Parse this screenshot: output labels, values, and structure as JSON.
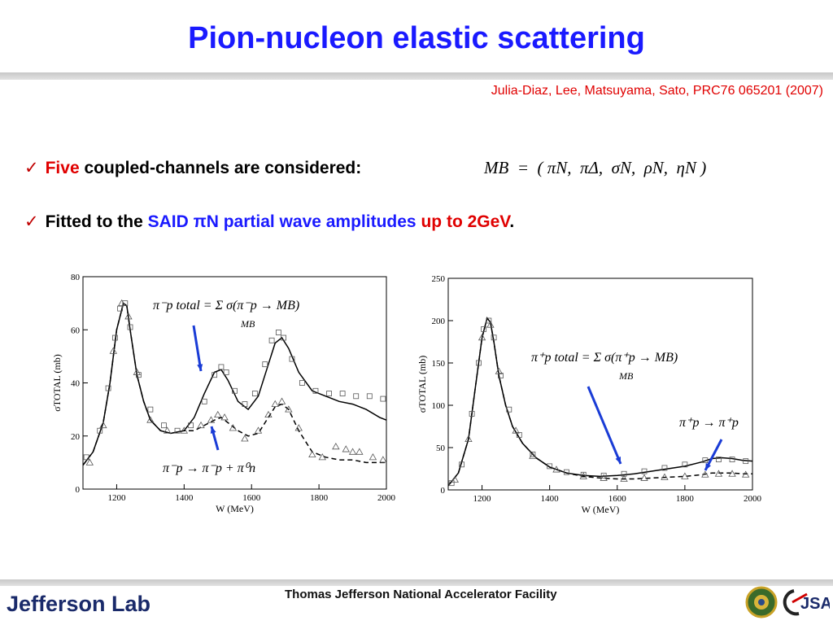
{
  "slide": {
    "title": "Pion-nucleon elastic scattering",
    "citation": "Julia-Diaz, Lee, Matsuyama, Sato, PRC76 065201 (2007)",
    "bullet1": {
      "check": "✓",
      "red": "Five",
      "rest": "coupled-channels are considered:"
    },
    "mb_equation": "MB  =  ( πN,  πΔ,  σN,  ρN,  ηN )",
    "bullet2": {
      "check": "✓",
      "pre": "Fitted to the",
      "blue": "SAID πN partial wave amplitudes",
      "red": "up to 2GeV",
      "post": "."
    },
    "footer_center": "Thomas Jefferson National Accelerator Facility",
    "footer_logo": "Jefferson Lab",
    "footer_logo2": "JSA"
  },
  "colors": {
    "title": "#1a1aff",
    "red": "#e00000",
    "arrow": "#1a3cd6"
  },
  "chart_data": [
    {
      "type": "line",
      "ylabel": "σTOTAL (mb)",
      "xlabel": "W (MeV)",
      "xlim": [
        1100,
        2000
      ],
      "ylim": [
        0,
        80
      ],
      "xticks": [
        "1200",
        "1400",
        "1600",
        "1800",
        "2000"
      ],
      "yticks": [
        "0",
        "20",
        "40",
        "60",
        "80"
      ],
      "annotations": {
        "total": "π⁻p total = Σ σ(π⁻p → MB)",
        "total_sum": "MB",
        "elastic": "π⁻p → π⁻p + π⁰n"
      },
      "series": [
        {
          "style": "solid",
          "x": [
            1100,
            1130,
            1160,
            1180,
            1200,
            1220,
            1230,
            1240,
            1260,
            1280,
            1300,
            1330,
            1360,
            1400,
            1430,
            1460,
            1490,
            1510,
            1530,
            1560,
            1590,
            1620,
            1650,
            1670,
            1690,
            1710,
            1740,
            1780,
            1820,
            1860,
            1900,
            1940,
            1980,
            2000
          ],
          "y": [
            9,
            14,
            25,
            40,
            60,
            70,
            69,
            60,
            43,
            33,
            26,
            22,
            21,
            22,
            27,
            36,
            44,
            45,
            41,
            33,
            30,
            35,
            47,
            55,
            57,
            53,
            44,
            37,
            35,
            33,
            32,
            30,
            27,
            26
          ]
        },
        {
          "style": "dashed",
          "x": [
            1100,
            1130,
            1160,
            1180,
            1200,
            1220,
            1230,
            1240,
            1260,
            1280,
            1300,
            1330,
            1360,
            1400,
            1430,
            1460,
            1490,
            1510,
            1530,
            1560,
            1590,
            1620,
            1650,
            1670,
            1690,
            1710,
            1740,
            1780,
            1820,
            1860,
            1900,
            1940,
            1980,
            2000
          ],
          "y": [
            9,
            14,
            25,
            40,
            60,
            70,
            69,
            60,
            43,
            33,
            26,
            22,
            21,
            22,
            22,
            24,
            26,
            27,
            25,
            22,
            20,
            21,
            27,
            31,
            32,
            30,
            22,
            14,
            12,
            11,
            11,
            10,
            10,
            10
          ]
        },
        {
          "style": "squares",
          "x": [
            1110,
            1150,
            1175,
            1195,
            1210,
            1225,
            1240,
            1265,
            1300,
            1340,
            1380,
            1420,
            1460,
            1490,
            1510,
            1525,
            1550,
            1580,
            1610,
            1640,
            1660,
            1680,
            1695,
            1720,
            1750,
            1790,
            1830,
            1870,
            1910,
            1950,
            1990
          ],
          "y": [
            12,
            22,
            38,
            57,
            68,
            70,
            61,
            43,
            30,
            24,
            22,
            24,
            33,
            43,
            46,
            44,
            37,
            32,
            36,
            47,
            56,
            59,
            57,
            49,
            40,
            37,
            36,
            36,
            35,
            35,
            34
          ]
        },
        {
          "style": "triangles",
          "x": [
            1120,
            1160,
            1190,
            1215,
            1235,
            1260,
            1300,
            1350,
            1400,
            1450,
            1480,
            1500,
            1520,
            1545,
            1580,
            1620,
            1650,
            1670,
            1690,
            1710,
            1740,
            1780,
            1810,
            1850,
            1880,
            1900,
            1920,
            1960,
            1990
          ],
          "y": [
            10,
            24,
            52,
            70,
            65,
            44,
            26,
            22,
            22,
            24,
            26,
            28,
            27,
            23,
            19,
            22,
            28,
            32,
            33,
            30,
            23,
            13,
            12,
            16,
            15,
            14,
            14,
            12,
            11
          ]
        }
      ]
    },
    {
      "type": "line",
      "ylabel": "σTOTAL (mb)",
      "xlabel": "W (MeV)",
      "xlim": [
        1100,
        2000
      ],
      "ylim": [
        0,
        250
      ],
      "xticks": [
        "1200",
        "1400",
        "1600",
        "1800",
        "2000"
      ],
      "yticks": [
        "0",
        "50",
        "100",
        "150",
        "200",
        "250"
      ],
      "annotations": {
        "total": "π⁺p total = Σ σ(π⁺p → MB)",
        "total_sum": "MB",
        "elastic": "π⁺p → π⁺p"
      },
      "series": [
        {
          "style": "solid",
          "x": [
            1100,
            1130,
            1160,
            1180,
            1200,
            1215,
            1225,
            1235,
            1250,
            1270,
            1290,
            1320,
            1360,
            1400,
            1450,
            1500,
            1550,
            1600,
            1650,
            1700,
            1750,
            1800,
            1850,
            1880,
            1910,
            1940,
            1970,
            2000
          ],
          "y": [
            5,
            20,
            60,
            120,
            180,
            203,
            198,
            175,
            135,
            100,
            75,
            55,
            38,
            27,
            20,
            17,
            16,
            17,
            19,
            22,
            25,
            28,
            33,
            37,
            38,
            37,
            35,
            34
          ]
        },
        {
          "style": "dashed",
          "x": [
            1100,
            1130,
            1160,
            1180,
            1200,
            1215,
            1225,
            1235,
            1250,
            1270,
            1290,
            1320,
            1360,
            1400,
            1450,
            1500,
            1550,
            1600,
            1650,
            1700,
            1750,
            1800,
            1850,
            1880,
            1910,
            1940,
            1970,
            2000
          ],
          "y": [
            5,
            20,
            60,
            120,
            180,
            203,
            198,
            175,
            135,
            100,
            75,
            55,
            38,
            27,
            20,
            16,
            14,
            13,
            13,
            14,
            15,
            16,
            18,
            20,
            20,
            20,
            19,
            19
          ]
        },
        {
          "style": "squares",
          "x": [
            1110,
            1140,
            1170,
            1190,
            1205,
            1220,
            1235,
            1255,
            1280,
            1310,
            1350,
            1400,
            1450,
            1500,
            1560,
            1620,
            1680,
            1740,
            1800,
            1860,
            1900,
            1940,
            1980
          ],
          "y": [
            8,
            30,
            90,
            150,
            190,
            200,
            180,
            135,
            95,
            65,
            42,
            28,
            21,
            18,
            17,
            19,
            22,
            26,
            30,
            35,
            36,
            36,
            34
          ]
        },
        {
          "style": "triangles",
          "x": [
            1120,
            1160,
            1200,
            1225,
            1250,
            1300,
            1350,
            1420,
            1500,
            1560,
            1620,
            1680,
            1740,
            1800,
            1860,
            1900,
            1940,
            1980
          ],
          "y": [
            12,
            60,
            180,
            195,
            140,
            70,
            40,
            24,
            16,
            14,
            13,
            14,
            15,
            16,
            18,
            19,
            19,
            18
          ]
        }
      ]
    }
  ]
}
